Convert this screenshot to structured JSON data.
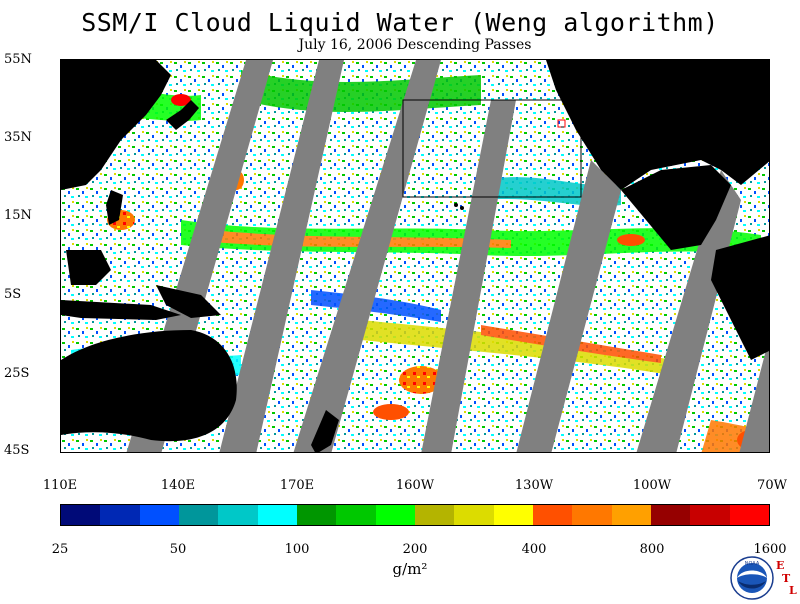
{
  "header": {
    "title": "SSM/I Cloud Liquid Water (Weng algorithm)",
    "subtitle": "July 16, 2006  Descending Passes"
  },
  "map": {
    "latitude_labels": [
      "55N",
      "35N",
      "15N",
      "5S",
      "25S",
      "45S"
    ],
    "longitude_labels": [
      "110E",
      "140E",
      "170E",
      "160W",
      "130W",
      "100W",
      "70W"
    ],
    "region": "Pacific Ocean",
    "colors": {
      "land": "#000000",
      "no_data": "#808080",
      "clear": "#ffffff"
    }
  },
  "legend": {
    "tick_labels": [
      "25",
      "50",
      "100",
      "200",
      "400",
      "800",
      "1600"
    ],
    "units": "g/m²",
    "colors": [
      "#000a78",
      "#0028b4",
      "#0050ff",
      "#00969b",
      "#00c8c8",
      "#00ffff",
      "#009600",
      "#00c800",
      "#00ff00",
      "#b4b400",
      "#dcdc00",
      "#ffff00",
      "#ff5000",
      "#ff7800",
      "#ffa000",
      "#960000",
      "#c80000",
      "#ff0000"
    ]
  },
  "logo": {
    "name": "NOAA",
    "lab_letters": [
      "E",
      "T",
      "L"
    ]
  }
}
